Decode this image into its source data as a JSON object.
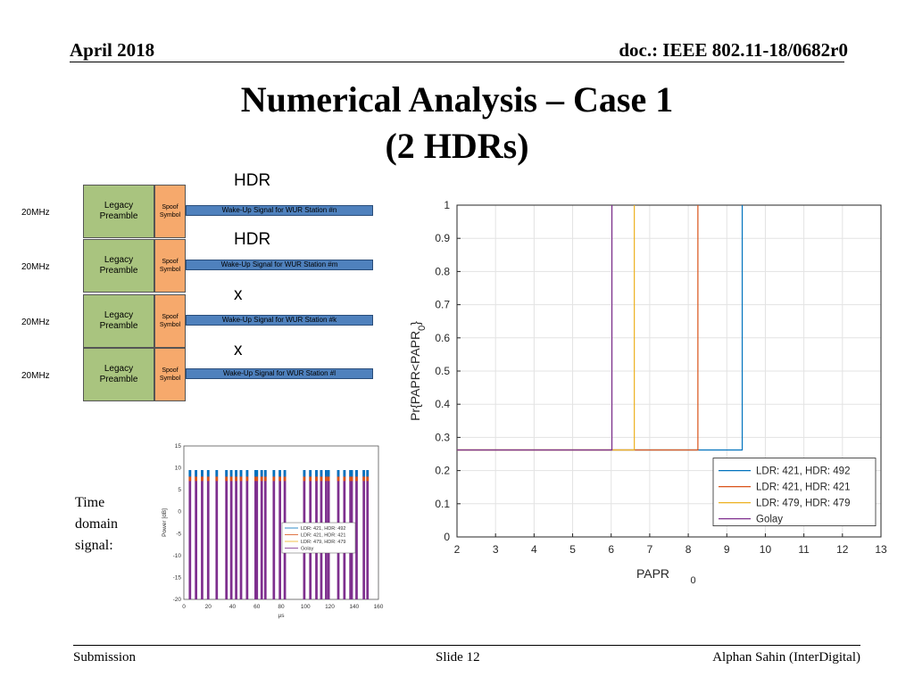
{
  "header": {
    "date": "April 2018",
    "doc": "doc.: IEEE 802.11-18/0682r0"
  },
  "title": {
    "line1": "Numerical Analysis – Case 1",
    "line2": "(2 HDRs)"
  },
  "diagram": {
    "rows": [
      {
        "freq": "20MHz",
        "top_label": "HDR",
        "legacy": [
          "Legacy",
          "Preamble"
        ],
        "spoof": [
          "Spoof",
          "Symbol"
        ],
        "signal": "Wake-Up Signal for WUR Station #n"
      },
      {
        "freq": "20MHz",
        "top_label": "HDR",
        "legacy": [
          "Legacy",
          "Preamble"
        ],
        "spoof": [
          "Spoof",
          "Symbol"
        ],
        "signal": "Wake-Up Signal for WUR Station #m"
      },
      {
        "freq": "20MHz",
        "top_label": "x",
        "legacy": [
          "Legacy",
          "Preamble"
        ],
        "spoof": [
          "Spoof",
          "Symbol"
        ],
        "signal": "Wake-Up Signal for WUR Station #k"
      },
      {
        "freq": "20MHz",
        "top_label": "x",
        "legacy": [
          "Legacy",
          "Preamble"
        ],
        "spoof": [
          "Spoof",
          "Symbol"
        ],
        "signal": "Wake-Up Signal for WUR Station #l"
      }
    ],
    "colors": {
      "legacy": "#a9c47f",
      "spoof": "#f6a96c",
      "signal": "#4f81bd"
    }
  },
  "side_label": [
    "Time",
    "domain",
    "signal:"
  ],
  "footer": {
    "left": "Submission",
    "center": "Slide 12",
    "right": "Alphan Sahin (InterDigital)"
  },
  "chart_data": [
    {
      "type": "line",
      "subtype": "step-cdf",
      "xlabel": "PAPR",
      "xlabel_sub": "0",
      "ylabel": "Pr{PAPR<PAPR",
      "ylabel_sub": "0",
      "ylabel_end": "}",
      "xlim": [
        2,
        13
      ],
      "ylim": [
        0,
        1
      ],
      "xticks": [
        2,
        3,
        4,
        5,
        6,
        7,
        8,
        9,
        10,
        11,
        12,
        13
      ],
      "yticks": [
        0,
        0.1,
        0.2,
        0.3,
        0.4,
        0.5,
        0.6,
        0.7,
        0.8,
        0.9,
        1
      ],
      "grid": true,
      "legend_position": "bottom-right",
      "series": [
        {
          "name": "LDR: 421, HDR: 492",
          "color": "#0072bd",
          "step_at": 9.4,
          "low": 0.262,
          "high": 1
        },
        {
          "name": "LDR: 421, HDR: 421",
          "color": "#d95319",
          "step_at": 8.25,
          "low": 0.262,
          "high": 1
        },
        {
          "name": "LDR: 479, HDR: 479",
          "color": "#edb120",
          "step_at": 6.6,
          "low": 0.262,
          "high": 1
        },
        {
          "name": "Golay",
          "color": "#7e2f8e",
          "step_at": 6.02,
          "low": 0.262,
          "high": 1
        }
      ]
    },
    {
      "type": "bar",
      "subtype": "time-domain-power",
      "xlabel": "μs",
      "ylabel": "Power [dB]",
      "xlim": [
        0,
        160
      ],
      "ylim": [
        -20,
        15
      ],
      "xticks": [
        0,
        20,
        40,
        60,
        80,
        100,
        120,
        140,
        160
      ],
      "yticks": [
        -20,
        -15,
        -10,
        -5,
        0,
        5,
        10,
        15
      ],
      "legend_position": "center-right",
      "series": [
        {
          "name": "LDR: 421, HDR: 492",
          "color": "#0072bd"
        },
        {
          "name": "LDR: 421, HDR: 421",
          "color": "#d95319"
        },
        {
          "name": "LDR: 479, HDR: 479",
          "color": "#edb120"
        },
        {
          "name": "Golay",
          "color": "#7e2f8e"
        }
      ],
      "on_intervals_us": [
        [
          4,
          6
        ],
        [
          9,
          11
        ],
        [
          14,
          16
        ],
        [
          19,
          21
        ],
        [
          26,
          28
        ],
        [
          34,
          36
        ],
        [
          38,
          40
        ],
        [
          42,
          44
        ],
        [
          46,
          48
        ],
        [
          51,
          53
        ],
        [
          58,
          61
        ],
        [
          63,
          65
        ],
        [
          66,
          68
        ],
        [
          73,
          75
        ],
        [
          78,
          80
        ],
        [
          82,
          84
        ],
        [
          98,
          100
        ],
        [
          103,
          105
        ],
        [
          108,
          110
        ],
        [
          112,
          114
        ],
        [
          116,
          118
        ],
        [
          118,
          120
        ],
        [
          126,
          128
        ],
        [
          131,
          133
        ],
        [
          136,
          139
        ],
        [
          141,
          143
        ],
        [
          147,
          149
        ],
        [
          150,
          152
        ]
      ],
      "peak_dB": 9.5,
      "floor_dB": -20
    }
  ]
}
